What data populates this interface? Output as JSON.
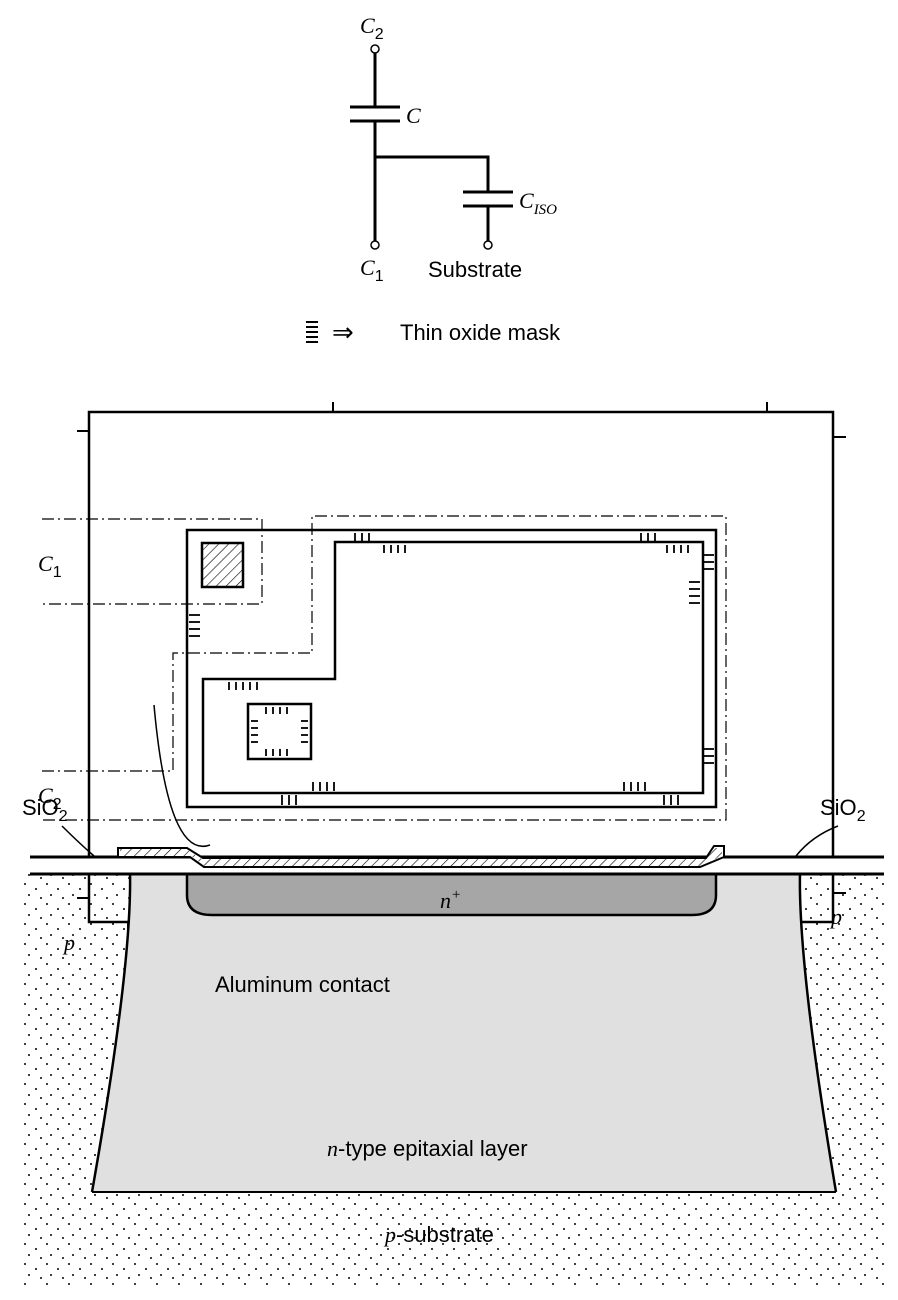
{
  "schematic": {
    "terminal_top": {
      "main": "C",
      "sub": "2"
    },
    "cap_main_label": "C",
    "cap_iso_label": {
      "main": "C",
      "sub": "ISO"
    },
    "terminal_bottom_left": {
      "main": "C",
      "sub": "1"
    },
    "terminal_bottom_right": "Substrate",
    "legend_text": "Thin oxide mask",
    "legend_arrow": "⇒"
  },
  "layout": {
    "label_c1": {
      "main": "C",
      "sub": "1"
    },
    "label_c2": {
      "main": "C",
      "sub": "2"
    }
  },
  "cross_section": {
    "aluminum_label": "Aluminum contact",
    "sio2_left": {
      "main": "SiO",
      "sub": "2"
    },
    "sio2_right": {
      "main": "SiO",
      "sub": "2"
    },
    "nplus": {
      "main": "n",
      "sup": "+"
    },
    "epi": {
      "italic": "n",
      "rest": "-type epitaxial layer"
    },
    "p_left": "p",
    "p_right": "p",
    "substrate": {
      "italic": "p",
      "rest": "-substrate"
    }
  },
  "colors": {
    "epi_fill": "#e0e0e0",
    "nplus_fill": "#a6a6a6",
    "line": "#000000"
  }
}
